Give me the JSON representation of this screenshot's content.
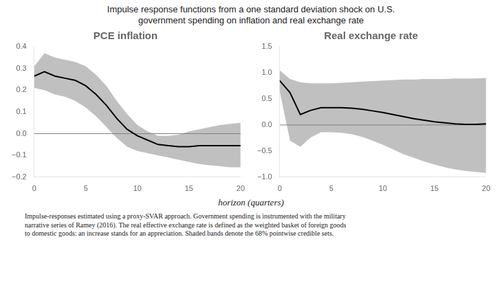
{
  "title": [
    "Impulse response functions from a one standard deviation shock on U.S.",
    "government spending on inflation and real exchange rate"
  ],
  "xlabel": "horizon (quarters)",
  "annotations": [
    "Impulse-responses estimated using a proxy-SVAR approach. Government spending is instrumented with the military\nnarrative series of Ramey (2016). The real effective exchange rate is defined as the weighted basket of foreign goods\nto domestic goods: an increase stands for an appreciation. Shaded bands denote the 68% pointwise credible sets."
  ],
  "chart_data": [
    {
      "type": "line",
      "title": "PCE inflation",
      "x": [
        0,
        1,
        2,
        3,
        4,
        5,
        6,
        7,
        8,
        9,
        10,
        11,
        12,
        13,
        14,
        15,
        16,
        17,
        18,
        19,
        20
      ],
      "series": [
        {
          "color": "#000000",
          "values": [
            0.265,
            0.285,
            0.265,
            0.255,
            0.245,
            0.22,
            0.18,
            0.13,
            0.07,
            0.02,
            -0.01,
            -0.03,
            -0.05,
            -0.055,
            -0.06,
            -0.06,
            -0.055,
            -0.055,
            -0.055,
            -0.055,
            -0.055
          ]
        }
      ],
      "band": {
        "color": "#c0c0c0",
        "upper": [
          0.31,
          0.37,
          0.35,
          0.34,
          0.33,
          0.31,
          0.27,
          0.22,
          0.15,
          0.09,
          0.04,
          0.01,
          -0.01,
          -0.01,
          -0.005,
          0.01,
          0.02,
          0.03,
          0.04,
          0.045,
          0.05
        ],
        "lower": [
          0.21,
          0.2,
          0.18,
          0.17,
          0.15,
          0.12,
          0.08,
          0.03,
          -0.02,
          -0.06,
          -0.08,
          -0.09,
          -0.1,
          -0.11,
          -0.12,
          -0.13,
          -0.14,
          -0.145,
          -0.15,
          -0.155,
          -0.155
        ]
      },
      "hline": {
        "y": 0,
        "color": "#808080"
      },
      "xlim": [
        0,
        20
      ],
      "xticks": [
        0,
        5,
        10,
        15,
        20
      ],
      "ylim": [
        -0.2,
        0.4
      ],
      "yticks": [
        {
          "value": -0.2,
          "label": "−0.2"
        },
        {
          "value": -0.1,
          "label": "−0.1"
        },
        {
          "value": 0,
          "label": "0.0"
        },
        0.1,
        0.2,
        0.3,
        0.4
      ],
      "grid": false
    },
    {
      "type": "line",
      "title": "Real exchange rate",
      "x": [
        0,
        1,
        2,
        3,
        4,
        5,
        6,
        7,
        8,
        9,
        10,
        11,
        12,
        13,
        14,
        15,
        16,
        17,
        18,
        19,
        20
      ],
      "series": [
        {
          "color": "#000000",
          "values": [
            0.85,
            0.62,
            0.2,
            0.28,
            0.33,
            0.33,
            0.33,
            0.32,
            0.3,
            0.27,
            0.24,
            0.2,
            0.16,
            0.12,
            0.09,
            0.06,
            0.04,
            0.02,
            0.01,
            0.01,
            0.02
          ]
        }
      ],
      "band": {
        "color": "#c0c0c0",
        "upper": [
          1.05,
          0.88,
          0.82,
          0.8,
          0.8,
          0.8,
          0.81,
          0.82,
          0.83,
          0.84,
          0.85,
          0.86,
          0.87,
          0.87,
          0.88,
          0.88,
          0.88,
          0.89,
          0.89,
          0.89,
          0.9
        ],
        "lower": [
          0.65,
          -0.3,
          -0.42,
          -0.24,
          -0.14,
          -0.14,
          -0.15,
          -0.18,
          -0.23,
          -0.3,
          -0.38,
          -0.47,
          -0.56,
          -0.63,
          -0.7,
          -0.76,
          -0.81,
          -0.85,
          -0.88,
          -0.9,
          -0.92
        ]
      },
      "hline": {
        "y": 0,
        "color": "#808080"
      },
      "xlim": [
        0,
        20
      ],
      "xticks": [
        0,
        5,
        10,
        15,
        20
      ],
      "ylim": [
        -1.0,
        1.5
      ],
      "yticks": [
        {
          "value": -1,
          "label": "−1.0"
        },
        {
          "value": -0.5,
          "label": "−0.5"
        },
        {
          "value": 0,
          "label": "0.0"
        },
        0.5,
        {
          "value": 1,
          "label": "1.0"
        },
        1.5
      ],
      "grid": false
    }
  ]
}
